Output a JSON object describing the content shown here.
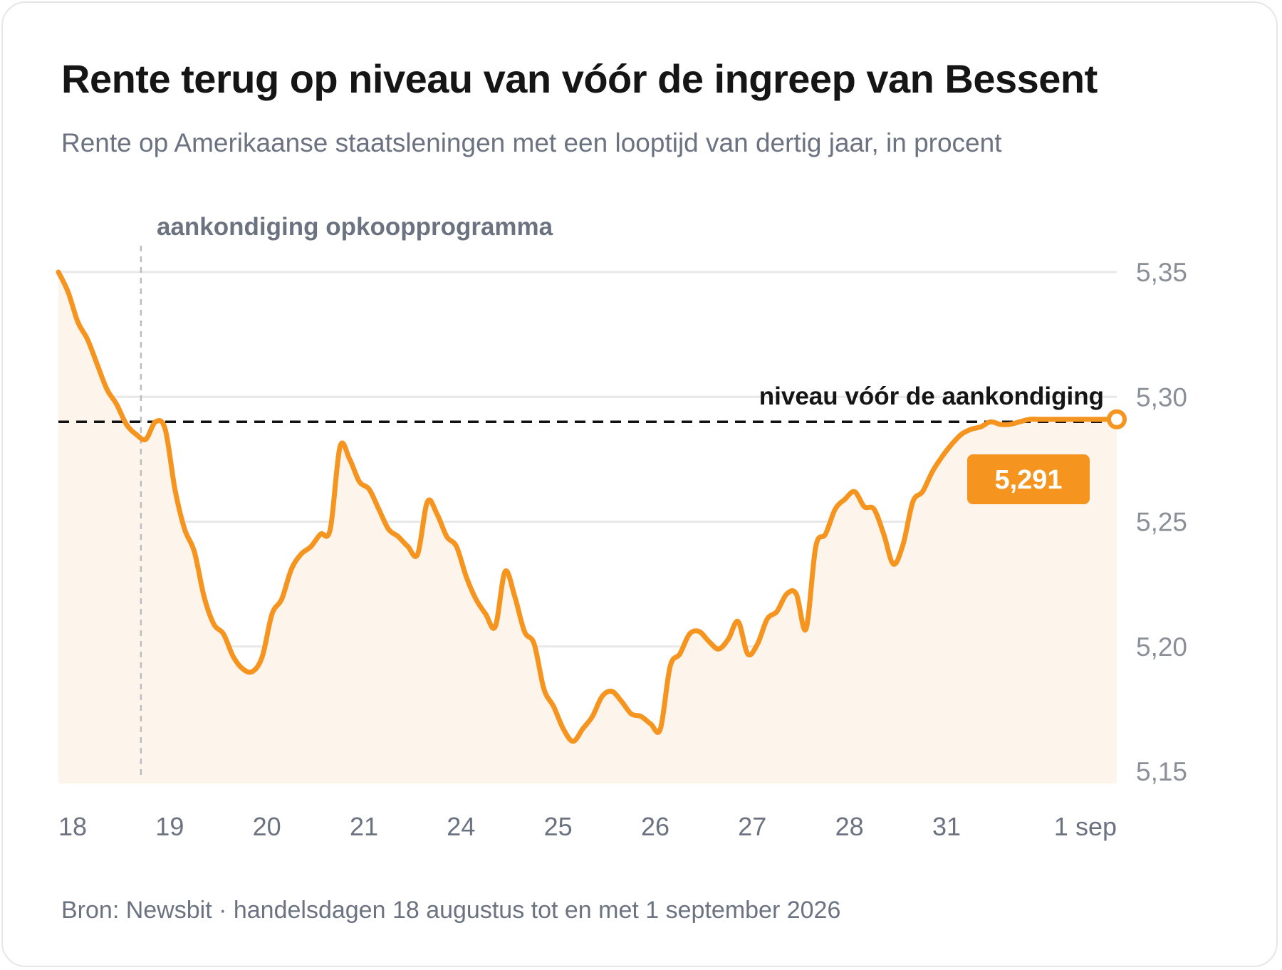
{
  "header": {
    "title": "Rente terug op niveau van vóór de ingreep van Bessent",
    "subtitle": "Rente op Amerikaanse staatsleningen met een looptijd van dertig jaar, in procent"
  },
  "footer": {
    "source": "Bron: Newsbit · handelsdagen 18 augustus tot en met 1 september 2026"
  },
  "colors": {
    "line": "#f5951f",
    "area": "#fdf5ec",
    "grid": "#e8e8e8",
    "reference": "#111111",
    "event_line": "#bdbdbd",
    "label_bg": "#f5951f",
    "label_text": "#ffffff",
    "axis_text": "#6b7280",
    "ytick_text": "#8a8f98"
  },
  "chart_data": {
    "type": "line",
    "xlabel": "",
    "ylabel": "",
    "ylim": [
      5.145,
      5.35
    ],
    "grid": true,
    "yticks": [
      5.35,
      5.3,
      5.25,
      5.2,
      5.15
    ],
    "ytick_labels": [
      "5,35",
      "5,30",
      "5,25",
      "5,20",
      "5,15"
    ],
    "xtick_labels": [
      "18",
      "19",
      "20",
      "21",
      "24",
      "25",
      "26",
      "27",
      "28",
      "31",
      "1 sep"
    ],
    "xtick_positions": [
      0,
      1,
      2,
      3,
      4,
      5,
      6,
      7,
      8,
      9,
      10
    ],
    "series": [
      {
        "x": [
          0,
          0.1,
          0.2,
          0.3,
          0.4,
          0.5,
          0.6,
          0.7,
          0.8,
          0.9,
          1.0,
          1.1,
          1.2,
          1.3,
          1.4,
          1.5,
          1.6,
          1.7,
          1.8,
          1.9,
          2.0,
          2.1,
          2.2,
          2.3,
          2.4,
          2.5,
          2.6,
          2.7,
          2.8,
          2.9,
          3.0,
          3.1,
          3.2,
          3.3,
          3.4,
          3.5,
          3.6,
          3.7,
          3.8,
          3.9,
          4.0,
          4.1,
          4.2,
          4.3,
          4.4,
          4.5,
          4.6,
          4.7,
          4.8,
          4.9,
          5.0,
          5.1,
          5.2,
          5.3,
          5.4,
          5.5,
          5.6,
          5.7,
          5.8,
          5.9,
          6.0,
          6.1,
          6.2,
          6.3,
          6.4,
          6.5,
          6.6,
          6.7,
          6.8,
          6.9,
          7.0,
          7.1,
          7.2,
          7.3,
          7.4,
          7.5,
          7.6,
          7.7,
          7.8,
          7.9,
          8.0,
          8.1,
          8.2,
          8.3,
          8.4,
          8.5,
          8.6,
          8.7,
          8.8,
          8.9,
          9.0,
          9.1,
          9.2,
          9.3,
          9.4,
          9.5,
          9.6,
          9.7,
          9.8,
          9.9,
          10.0,
          10.1,
          10.2,
          10.3,
          10.4,
          10.5,
          10.6,
          10.7,
          10.8,
          10.9
        ],
        "values": [
          5.35,
          5.342,
          5.33,
          5.323,
          5.313,
          5.303,
          5.297,
          5.289,
          5.285,
          5.283,
          5.29,
          5.287,
          5.263,
          5.247,
          5.238,
          5.22,
          5.209,
          5.205,
          5.196,
          5.191,
          5.19,
          5.196,
          5.213,
          5.219,
          5.231,
          5.237,
          5.24,
          5.245,
          5.247,
          5.28,
          5.275,
          5.266,
          5.263,
          5.255,
          5.247,
          5.244,
          5.24,
          5.237,
          5.258,
          5.253,
          5.244,
          5.24,
          5.228,
          5.219,
          5.213,
          5.208,
          5.23,
          5.22,
          5.206,
          5.201,
          5.183,
          5.176,
          5.167,
          5.162,
          5.167,
          5.172,
          5.18,
          5.182,
          5.178,
          5.173,
          5.172,
          5.169,
          5.167,
          5.192,
          5.197,
          5.205,
          5.206,
          5.202,
          5.199,
          5.203,
          5.21,
          5.197,
          5.201,
          5.211,
          5.214,
          5.221,
          5.221,
          5.207,
          5.24,
          5.245,
          5.255,
          5.259,
          5.262,
          5.256,
          5.255,
          5.245,
          5.233,
          5.241,
          5.258,
          5.262,
          5.27,
          5.276,
          5.281,
          5.285,
          5.287,
          5.288,
          5.29,
          5.289,
          5.289,
          5.29,
          5.291,
          5.291,
          5.291,
          5.291,
          5.291,
          5.291,
          5.291,
          5.291,
          5.291,
          5.291
        ]
      }
    ],
    "reference_line": {
      "value": 5.29,
      "label": "niveau vóór de aankondiging"
    },
    "event_line": {
      "x": 0.85,
      "label": "aankondiging opkoopprogramma"
    },
    "callout": {
      "value": 5.291,
      "label": "5,291"
    }
  }
}
